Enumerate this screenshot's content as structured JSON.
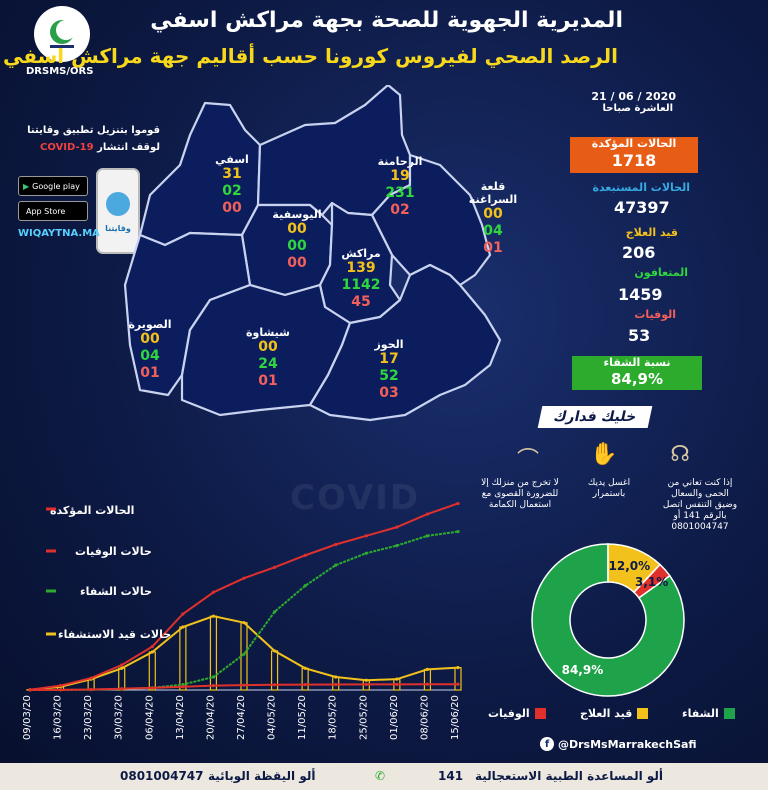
{
  "header": {
    "title": "المديرية الجهوية للصحة بجهة مراكش اسفي",
    "subtitle": "الرصد الصحي لفيروس كورونا حسب أقاليم جهة مراكش اسفي",
    "org_label": "DRSMS/ORS"
  },
  "promo": {
    "line1": "قوموا بتنزيل تطبيق وقايتنا",
    "line2_prefix": "لوقف انتشار",
    "line2_covid": "COVID-19",
    "google_play": "Google play",
    "app_store": "App Store",
    "store_sub": "Disponible sur",
    "site": "WIQAYTNA.MA",
    "app_name": "وقايتنا"
  },
  "regions": [
    {
      "name": "اسفي",
      "confirmed": "31",
      "recovered": "02",
      "deaths": "00"
    },
    {
      "name": "الرحامنة",
      "confirmed": "19",
      "recovered": "231",
      "deaths": "02"
    },
    {
      "name": "قلعة السراغنة",
      "confirmed": "00",
      "recovered": "04",
      "deaths": "01"
    },
    {
      "name": "اليوسفية",
      "confirmed": "00",
      "recovered": "00",
      "deaths": "00"
    },
    {
      "name": "مراكش",
      "confirmed": "139",
      "recovered": "1142",
      "deaths": "45"
    },
    {
      "name": "الصويرة",
      "confirmed": "00",
      "recovered": "04",
      "deaths": "01"
    },
    {
      "name": "شيشاوة",
      "confirmed": "00",
      "recovered": "24",
      "deaths": "01"
    },
    {
      "name": "الحوز",
      "confirmed": "17",
      "recovered": "52",
      "deaths": "03"
    }
  ],
  "stats": {
    "date": "21 / 06 / 2020",
    "time": "العاشرة صباحا",
    "confirmed_label": "الحالات المؤكدة",
    "confirmed": "1718",
    "excluded_label": "الحالات المستبعدة",
    "excluded": "47397",
    "treatment_label": "قيد العلاج",
    "treatment": "206",
    "recovered_label": "المتعافون",
    "recovered": "1459",
    "deaths_label": "الوفيات",
    "deaths": "53",
    "recovery_rate_label": "نسبة الشفاء",
    "recovery_rate": "84,9%"
  },
  "tips": {
    "banner": "خليك فدارك",
    "tip1": "إذا كنت تعاني من الحمى والسعال وضيق التنفس اتصل بالرقم 141 أو 0801004747",
    "tip2": "اغسل يديك باستمرار",
    "tip3": "لا تخرج من منزلك إلا للضرورة القصوى مع استعمال الكمامة"
  },
  "chart_data": [
    {
      "type": "line",
      "watermark": "COVID",
      "x": [
        "09/03/20",
        "16/03/20",
        "23/03/20",
        "30/03/20",
        "06/04/20",
        "13/04/20",
        "20/04/20",
        "27/04/20",
        "04/05/20",
        "11/05/20",
        "18/05/20",
        "25/05/20",
        "01/06/20",
        "08/06/20",
        "15/06/20"
      ],
      "series": [
        {
          "name": "الحالات المؤكدة",
          "color": "#e0302c",
          "values": [
            2,
            40,
            110,
            230,
            400,
            700,
            900,
            1030,
            1130,
            1240,
            1340,
            1420,
            1500,
            1620,
            1718
          ]
        },
        {
          "name": "حالات الوفيات",
          "color": "#e0302c",
          "values": [
            0,
            1,
            5,
            12,
            20,
            30,
            40,
            45,
            48,
            50,
            51,
            52,
            52,
            53,
            53
          ]
        },
        {
          "name": "حالات الشفاء",
          "color": "#2dab2d",
          "values": [
            0,
            1,
            3,
            10,
            20,
            50,
            120,
            330,
            720,
            960,
            1150,
            1260,
            1330,
            1420,
            1459
          ]
        },
        {
          "name": "حالات قيد الاستشفاء",
          "color": "#f2c11b",
          "values": [
            2,
            30,
            100,
            200,
            350,
            580,
            680,
            620,
            360,
            200,
            120,
            90,
            100,
            190,
            206
          ]
        }
      ]
    },
    {
      "type": "pie",
      "labels": [
        "الشفاء",
        "قيد العلاج",
        "الوفيات"
      ],
      "values": [
        84.9,
        12.0,
        3.1
      ],
      "value_labels": [
        "84,9%",
        "12,0%",
        "3,1%"
      ],
      "colors": [
        "#1fa34a",
        "#f2c11b",
        "#e0302c"
      ]
    }
  ],
  "footer": {
    "facebook": "@DrsMsMarrakechSafi",
    "samu_label": "ألو المساعدة الطبية الاستعجالية",
    "samu_number": "141",
    "vigilance_label": "ألو اليقظة الوبائية",
    "vigilance_number": "0801004747"
  }
}
